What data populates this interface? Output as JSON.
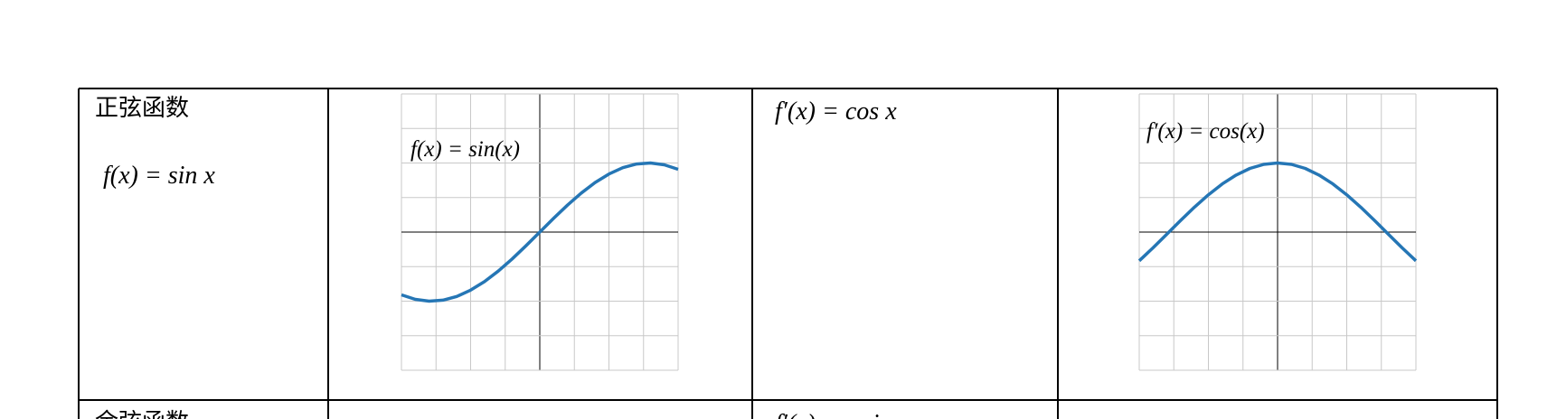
{
  "table": {
    "rows": [
      {
        "name": "正弦函数",
        "formula": "f(x) = sin x",
        "derivative": "f′(x) = cos x",
        "chart": {
          "type": "line",
          "label": "f(x) = sin(x)",
          "color": "#2576b5",
          "x": [
            -2,
            -1.8,
            -1.6,
            -1.4,
            -1.2,
            -1,
            -0.8,
            -0.6,
            -0.4,
            -0.2,
            0,
            0.2,
            0.4,
            0.6,
            0.8,
            1,
            1.2,
            1.4,
            1.6,
            1.8,
            2
          ],
          "values": [
            -0.909,
            -0.974,
            -1.0,
            -0.985,
            -0.932,
            -0.841,
            -0.717,
            -0.565,
            -0.389,
            -0.199,
            0,
            0.199,
            0.389,
            0.565,
            0.717,
            0.841,
            0.932,
            0.985,
            1.0,
            0.974,
            0.909
          ],
          "xlim": [
            -2,
            2
          ],
          "ylim": [
            -2,
            2
          ],
          "xticks": [
            -2,
            -1.5,
            -1,
            -0.5,
            0,
            0.5,
            1,
            1.5,
            2
          ],
          "yticks": [
            -2,
            -1.5,
            -1,
            -0.5,
            0,
            0.5,
            1,
            1.5,
            2
          ],
          "grid": true
        },
        "derivative_chart": {
          "type": "line",
          "label": "f′(x) = cos(x)",
          "color": "#2576b5",
          "x": [
            -2,
            -1.8,
            -1.6,
            -1.4,
            -1.2,
            -1,
            -0.8,
            -0.6,
            -0.4,
            -0.2,
            0,
            0.2,
            0.4,
            0.6,
            0.8,
            1,
            1.2,
            1.4,
            1.6,
            1.8,
            2
          ],
          "values": [
            -0.416,
            -0.227,
            -0.029,
            0.17,
            0.362,
            0.54,
            0.697,
            0.825,
            0.921,
            0.98,
            1,
            0.98,
            0.921,
            0.825,
            0.697,
            0.54,
            0.362,
            0.17,
            -0.029,
            -0.227,
            -0.416
          ],
          "xlim": [
            -2,
            2
          ],
          "ylim": [
            -2,
            2
          ],
          "xticks": [
            -2,
            -1.5,
            -1,
            -0.5,
            0,
            0.5,
            1,
            1.5,
            2
          ],
          "yticks": [
            -2,
            -1.5,
            -1,
            -0.5,
            0,
            0.5,
            1,
            1.5,
            2
          ],
          "grid": true
        }
      },
      {
        "name": "余弦函数",
        "derivative": "f′(x) = −sin x"
      }
    ]
  }
}
